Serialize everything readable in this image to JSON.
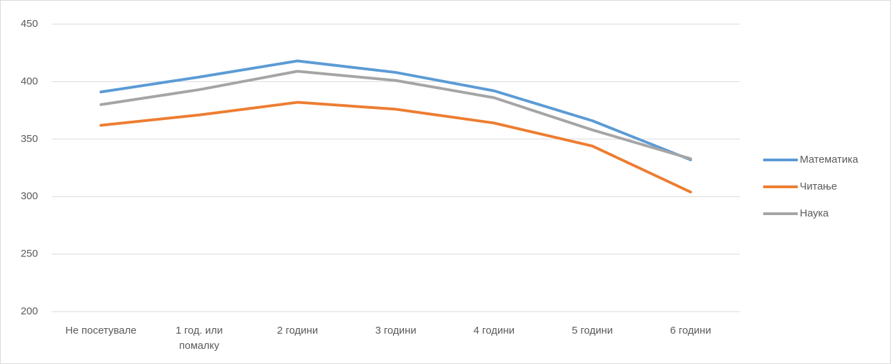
{
  "chart_data": {
    "type": "line",
    "categories": [
      "Не посетувале",
      "1 год. или помалку",
      "2 години",
      "3 години",
      "4 години",
      "5 години",
      "6 години"
    ],
    "series": [
      {
        "name": "Математика",
        "color": "#5b9bd5",
        "values": [
          391,
          404,
          418,
          408,
          392,
          366,
          332
        ]
      },
      {
        "name": "Читање",
        "color": "#ed7d31",
        "values": [
          362,
          371,
          382,
          376,
          364,
          344,
          304
        ]
      },
      {
        "name": "Наука",
        "color": "#a5a5a5",
        "values": [
          380,
          393,
          409,
          401,
          386,
          358,
          333
        ]
      }
    ],
    "ylim": [
      200,
      450
    ],
    "yticks": [
      200,
      250,
      300,
      350,
      400,
      450
    ],
    "grid": true,
    "legend": "right"
  }
}
